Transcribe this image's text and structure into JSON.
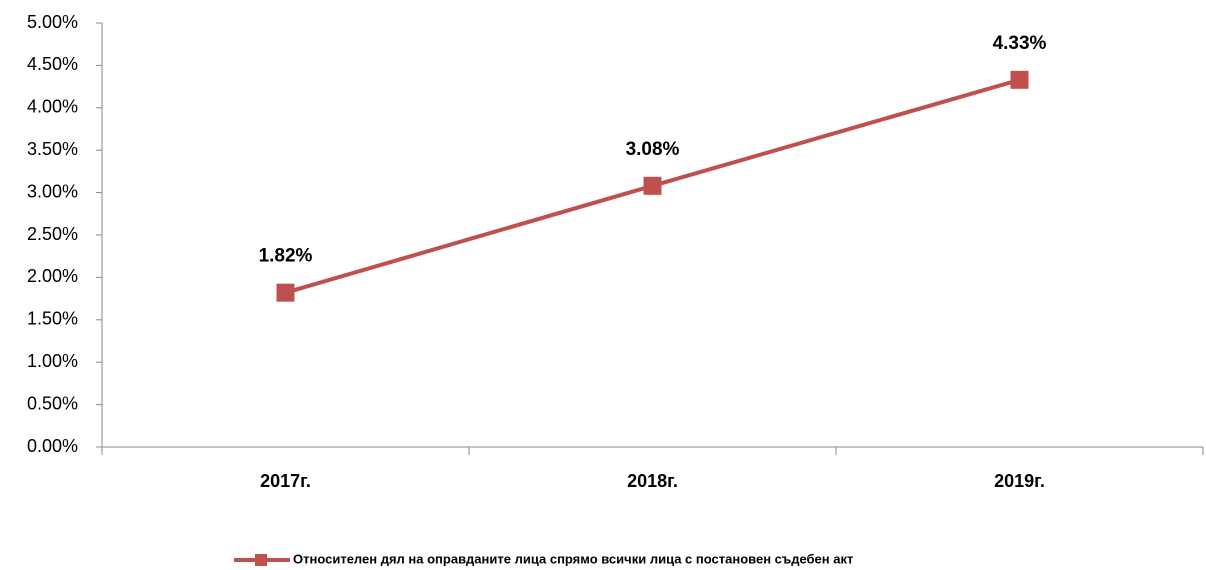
{
  "chart_data": {
    "type": "line",
    "categories": [
      "2017г.",
      "2018г.",
      "2019г."
    ],
    "series": [
      {
        "name": "Относителен дял на оправданите лица спрямо всички лица с постановен съдебен акт",
        "color": "#c0504d",
        "values": [
          1.82,
          3.08,
          4.33
        ],
        "value_labels": [
          "1.82%",
          "3.08%",
          "4.33%"
        ]
      }
    ],
    "ylim": [
      0,
      5
    ],
    "yticks": [
      {
        "value": 0,
        "label": "0.00%"
      },
      {
        "value": 0.5,
        "label": "0.50%"
      },
      {
        "value": 1,
        "label": "1.00%"
      },
      {
        "value": 1.5,
        "label": "1.50%"
      },
      {
        "value": 2,
        "label": "2.00%"
      },
      {
        "value": 2.5,
        "label": "2.50%"
      },
      {
        "value": 3,
        "label": "3.00%"
      },
      {
        "value": 3.5,
        "label": "3.50%"
      },
      {
        "value": 4,
        "label": "4.00%"
      },
      {
        "value": 4.5,
        "label": "4.50%"
      },
      {
        "value": 5,
        "label": "5.00%"
      }
    ],
    "grid": false,
    "legend": "bottom"
  }
}
